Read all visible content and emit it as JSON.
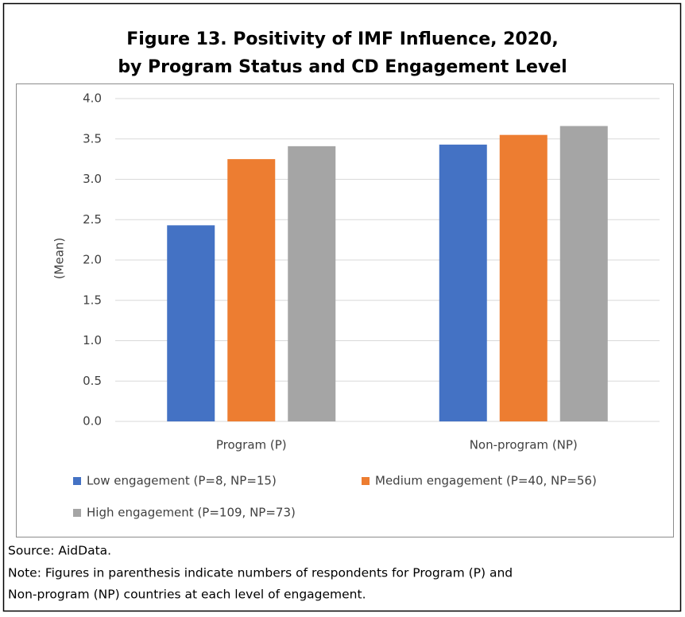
{
  "chart_data": {
    "type": "bar",
    "title": [
      "Figure 13. Positivity of IMF Influence, 2020,",
      "by Program Status and CD Engagement Level"
    ],
    "ylabel": "(Mean)",
    "categories": [
      "Program (P)",
      "Non-program (NP)"
    ],
    "series": [
      {
        "name": "Low engagement (P=8, NP=15)",
        "color": "#4472c4",
        "values": [
          2.43,
          3.43
        ]
      },
      {
        "name": "Medium engagement (P=40, NP=56)",
        "color": "#ed7d31",
        "values": [
          3.25,
          3.55
        ]
      },
      {
        "name": "High engagement (P=109, NP=73)",
        "color": "#a5a5a5",
        "values": [
          3.41,
          3.66
        ]
      }
    ],
    "ylim": [
      0,
      4
    ],
    "yticks": [
      {
        "value": 0,
        "label": "0.0"
      },
      0.5,
      {
        "value": 1,
        "label": "1.0"
      },
      1.5,
      {
        "value": 2,
        "label": "2.0"
      },
      2.5,
      {
        "value": 3,
        "label": "3.0"
      },
      3.5,
      {
        "value": 4,
        "label": "4.0"
      }
    ],
    "grid": true,
    "legend": "bottom",
    "notes": [
      "Source: AidData.",
      "Note: Figures in parenthesis indicate numbers of respondents for Program (P) and",
      "Non-program (NP) countries at each level of engagement."
    ]
  }
}
